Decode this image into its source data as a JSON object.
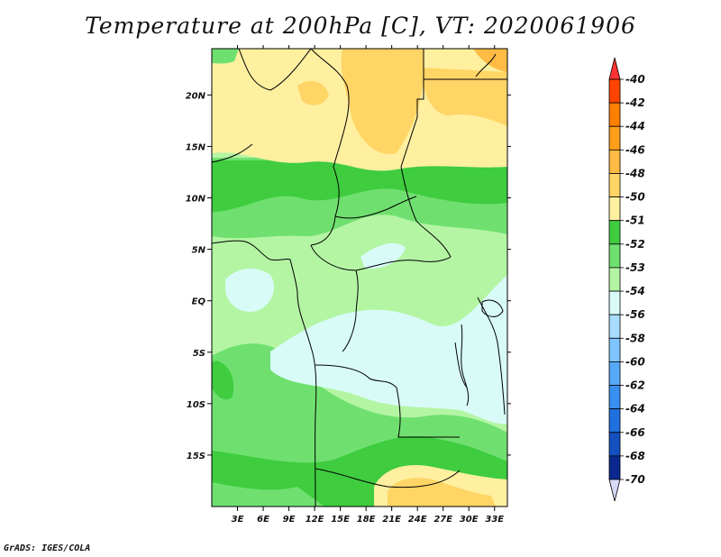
{
  "chart_data": {
    "type": "heatmap",
    "title": "Temperature at 200hPa [C], VT: 2020061906",
    "x_axis": {
      "range": [
        0,
        34.5
      ],
      "unit": "degrees east",
      "ticks": [
        {
          "value": 3,
          "label": "3E"
        },
        {
          "value": 6,
          "label": "6E"
        },
        {
          "value": 9,
          "label": "9E"
        },
        {
          "value": 12,
          "label": "12E"
        },
        {
          "value": 15,
          "label": "15E"
        },
        {
          "value": 18,
          "label": "18E"
        },
        {
          "value": 21,
          "label": "21E"
        },
        {
          "value": 24,
          "label": "24E"
        },
        {
          "value": 27,
          "label": "27E"
        },
        {
          "value": 30,
          "label": "30E"
        },
        {
          "value": 33,
          "label": "33E"
        }
      ]
    },
    "y_axis": {
      "range": [
        -20,
        24.5
      ],
      "unit": "degrees latitude",
      "ticks": [
        {
          "value": 20,
          "label": "20N"
        },
        {
          "value": 15,
          "label": "15N"
        },
        {
          "value": 10,
          "label": "10N"
        },
        {
          "value": 5,
          "label": "5N"
        },
        {
          "value": 0,
          "label": "EQ"
        },
        {
          "value": -5,
          "label": "5S"
        },
        {
          "value": -10,
          "label": "10S"
        },
        {
          "value": -15,
          "label": "15S"
        }
      ]
    },
    "colorbar": {
      "orientation": "vertical",
      "levels": [
        {
          "label": "-40",
          "color": "#ff3333"
        },
        {
          "label": "-42",
          "color": "#ff4400"
        },
        {
          "label": "-44",
          "color": "#ff7f00"
        },
        {
          "label": "-46",
          "color": "#ff9f1a"
        },
        {
          "label": "-48",
          "color": "#ffbb44"
        },
        {
          "label": "-50",
          "color": "#ffd566"
        },
        {
          "label": "-51",
          "color": "#fff0a0"
        },
        {
          "label": "-52",
          "color": "#3fcc3f"
        },
        {
          "label": "-53",
          "color": "#6fe06f"
        },
        {
          "label": "-54",
          "color": "#b4f5a4"
        },
        {
          "label": "-56",
          "color": "#d8fbf8"
        },
        {
          "label": "-58",
          "color": "#a8dcff"
        },
        {
          "label": "-60",
          "color": "#80c4ff"
        },
        {
          "label": "-62",
          "color": "#58a8f8"
        },
        {
          "label": "-64",
          "color": "#3890f0"
        },
        {
          "label": "-66",
          "color": "#2070e0"
        },
        {
          "label": "-68",
          "color": "#1450c0"
        },
        {
          "label": "-70",
          "color": "#0a2890"
        }
      ],
      "bottom_triangle_color": "#d8d8f8"
    },
    "field_regions": [
      {
        "description": "northern sector (about 16N-24N)",
        "value_range": "-50 to -51 C"
      },
      {
        "description": "Sahel band (about 10N-15N)",
        "value_range": "-52 to -53 C"
      },
      {
        "description": "central Africa and Congo basin (about 5N-10S)",
        "value_range": "-53 to -56 C"
      },
      {
        "description": "southern sector (about 11S-18S)",
        "value_range": "-52 to -54 C"
      },
      {
        "description": "far south-east corner (about 18S-20S)",
        "value_range": "-50 to -51 C"
      }
    ]
  },
  "credit": "GrADS: IGES/COLA",
  "colors": {
    "coast": "#000000",
    "frame": "#000000"
  }
}
